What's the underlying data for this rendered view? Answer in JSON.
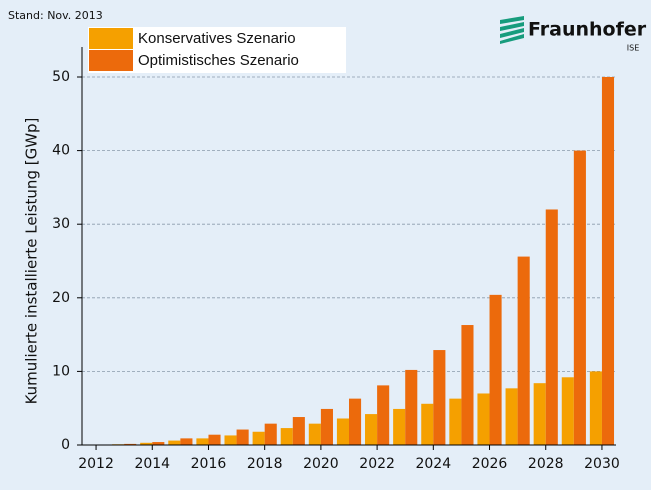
{
  "chart_data": {
    "type": "bar",
    "note": "Stand: Nov. 2013",
    "brand": "Fraunhofer",
    "brand_sub": "ISE",
    "y_label": "Kumulierte installierte Leistung [GWp]",
    "categories": [
      "2012",
      null,
      "2014",
      null,
      "2016",
      null,
      "2018",
      null,
      "2020",
      null,
      "2022",
      null,
      "2024",
      null,
      "2026",
      null,
      "2028",
      null,
      "2030"
    ],
    "series": [
      {
        "name": "Konservatives Szenario",
        "color": "#f5a000",
        "values": [
          0,
          0.1,
          0.3,
          0.6,
          0.9,
          1.3,
          1.8,
          2.3,
          2.9,
          3.6,
          4.2,
          4.9,
          5.6,
          6.3,
          7.0,
          7.7,
          8.4,
          9.2,
          10
        ]
      },
      {
        "name": "Optimistisches Szenario",
        "color": "#ec6a0c",
        "values": [
          0,
          0.15,
          0.4,
          0.9,
          1.4,
          2.1,
          2.9,
          3.8,
          4.9,
          6.3,
          8.1,
          10.2,
          12.9,
          16.3,
          20.4,
          25.6,
          32.0,
          40.0,
          50.0
        ]
      }
    ],
    "ylim": [
      0,
      50
    ],
    "yticks": [
      0,
      10,
      20,
      30,
      40,
      50
    ],
    "grid": true
  }
}
